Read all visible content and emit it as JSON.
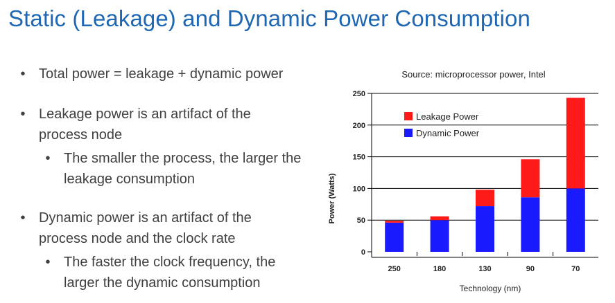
{
  "slide": {
    "title": "Static (Leakage) and Dynamic Power Consumption",
    "bullets": [
      {
        "level": 1,
        "text": "Total power = leakage + dynamic power"
      },
      {
        "level": 1,
        "text": "Leakage power is an artifact of the process node"
      },
      {
        "level": 2,
        "text": "The smaller the process, the larger the leakage consumption"
      },
      {
        "level": 1,
        "text": "Dynamic power is an artifact of the process node and the clock rate"
      },
      {
        "level": 2,
        "text": "The faster the clock frequency, the larger the dynamic consumption"
      }
    ],
    "bullet_glyph": "•"
  },
  "chart_data": {
    "type": "bar",
    "stacked": true,
    "title": "Source: microprocessor power, Intel",
    "xlabel": "Technology (nm)",
    "ylabel": "Power (Watts)",
    "categories": [
      "250",
      "180",
      "130",
      "90",
      "70"
    ],
    "series": [
      {
        "name": "Dynamic Power",
        "color": "#1a1aff",
        "values": [
          46,
          50,
          72,
          86,
          100
        ]
      },
      {
        "name": "Leakage Power",
        "color": "#ff1a1a",
        "values": [
          3,
          6,
          26,
          60,
          143
        ]
      }
    ],
    "legend_order": [
      "Leakage Power",
      "Dynamic Power"
    ],
    "ylim": [
      0,
      250
    ],
    "yticks": [
      "0",
      "50",
      "100",
      "150",
      "200",
      "250"
    ],
    "grid": "horizontal",
    "legend_position": "top-left"
  }
}
